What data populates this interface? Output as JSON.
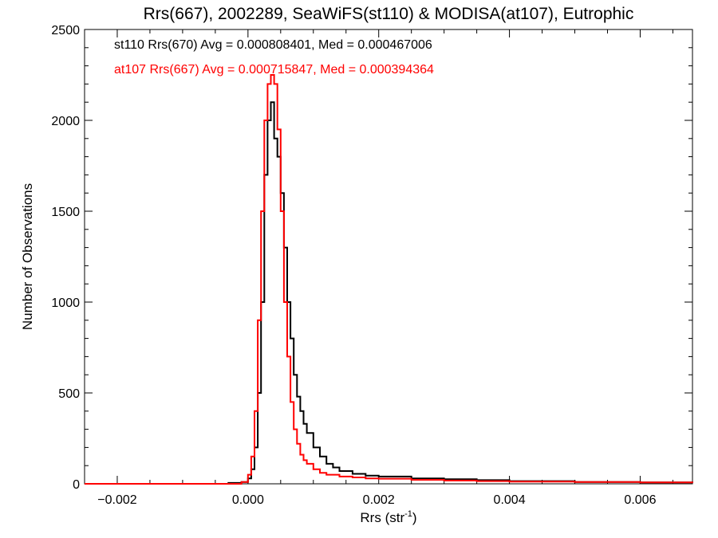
{
  "chart_data": {
    "type": "line",
    "title": "Rrs(667), 2002289, SeaWiFS(st110) & MODISA(at107), Eutrophic",
    "xlabel": "Rrs (str",
    "xlabel_sup": "-1",
    "xlabel_close": ")",
    "ylabel": "Number of Observations",
    "xlim": [
      -0.0025,
      0.0068
    ],
    "ylim": [
      0,
      2500
    ],
    "xticks": [
      -0.002,
      0.0,
      0.002,
      0.004,
      0.006
    ],
    "xtick_labels": [
      "−0.002",
      "0.000",
      "0.002",
      "0.004",
      "0.006"
    ],
    "yticks": [
      0,
      500,
      1000,
      1500,
      2000,
      2500
    ],
    "ytick_labels": [
      "0",
      "500",
      "1000",
      "1500",
      "2000",
      "2500"
    ],
    "grid": false,
    "annotations": [
      "st110 Rrs(670) Avg = 0.000808401, Med = 0.000467006",
      "at107 Rrs(667) Avg = 0.000715847, Med = 0.000394364"
    ],
    "series": [
      {
        "color": "#000000",
        "points": [
          [
            -0.0025,
            0
          ],
          [
            -0.0006,
            0
          ],
          [
            -0.0003,
            5
          ],
          [
            -0.0001,
            10
          ],
          [
            0.0,
            30
          ],
          [
            5e-05,
            80
          ],
          [
            0.0001,
            200
          ],
          [
            0.00015,
            500
          ],
          [
            0.0002,
            1000
          ],
          [
            0.00025,
            1700
          ],
          [
            0.0003,
            2000
          ],
          [
            0.00035,
            2100
          ],
          [
            0.0004,
            1900
          ],
          [
            0.00045,
            1800
          ],
          [
            0.0005,
            1600
          ],
          [
            0.00055,
            1300
          ],
          [
            0.0006,
            1000
          ],
          [
            0.00065,
            800
          ],
          [
            0.0007,
            600
          ],
          [
            0.00075,
            480
          ],
          [
            0.0008,
            400
          ],
          [
            0.00085,
            330
          ],
          [
            0.0009,
            280
          ],
          [
            0.001,
            200
          ],
          [
            0.0011,
            150
          ],
          [
            0.0012,
            110
          ],
          [
            0.0013,
            90
          ],
          [
            0.0014,
            70
          ],
          [
            0.0016,
            55
          ],
          [
            0.0018,
            45
          ],
          [
            0.002,
            40
          ],
          [
            0.0025,
            30
          ],
          [
            0.003,
            25
          ],
          [
            0.0035,
            20
          ],
          [
            0.004,
            15
          ],
          [
            0.005,
            10
          ],
          [
            0.006,
            8
          ],
          [
            0.0068,
            5
          ]
        ]
      },
      {
        "color": "#ff0000",
        "points": [
          [
            -0.0025,
            0
          ],
          [
            -0.0003,
            0
          ],
          [
            -0.0001,
            10
          ],
          [
            0.0,
            50
          ],
          [
            5e-05,
            150
          ],
          [
            0.0001,
            400
          ],
          [
            0.00015,
            900
          ],
          [
            0.0002,
            1500
          ],
          [
            0.00025,
            2000
          ],
          [
            0.0003,
            2200
          ],
          [
            0.00035,
            2250
          ],
          [
            0.0004,
            2200
          ],
          [
            0.00045,
            1950
          ],
          [
            0.0005,
            1500
          ],
          [
            0.00055,
            1000
          ],
          [
            0.0006,
            700
          ],
          [
            0.00065,
            450
          ],
          [
            0.0007,
            300
          ],
          [
            0.00075,
            220
          ],
          [
            0.0008,
            160
          ],
          [
            0.00085,
            130
          ],
          [
            0.0009,
            110
          ],
          [
            0.001,
            80
          ],
          [
            0.0011,
            60
          ],
          [
            0.0012,
            50
          ],
          [
            0.0014,
            40
          ],
          [
            0.0016,
            35
          ],
          [
            0.0018,
            30
          ],
          [
            0.002,
            28
          ],
          [
            0.0025,
            22
          ],
          [
            0.003,
            18
          ],
          [
            0.0035,
            15
          ],
          [
            0.004,
            12
          ],
          [
            0.005,
            10
          ],
          [
            0.006,
            8
          ],
          [
            0.0068,
            5
          ]
        ]
      }
    ]
  }
}
